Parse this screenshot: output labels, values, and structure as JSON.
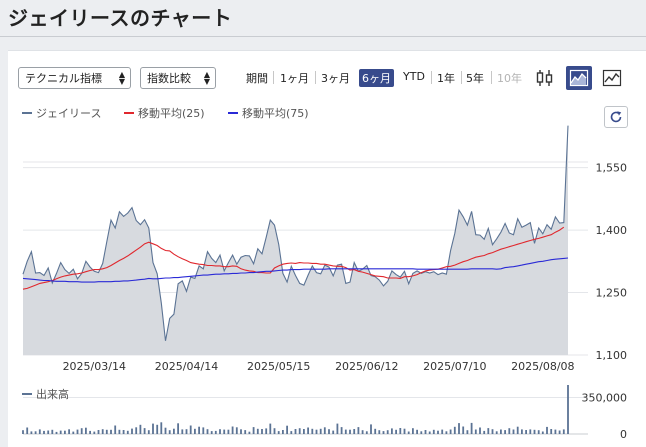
{
  "page": {
    "title": "ジェイリースのチャート"
  },
  "controls": {
    "technical_select": "テクニカル指標",
    "compare_select": "指数比較",
    "ranges": [
      {
        "label": "期間",
        "state": "normal"
      },
      {
        "label": "1ヶ月",
        "state": "normal"
      },
      {
        "label": "3ヶ月",
        "state": "normal"
      },
      {
        "label": "6ヶ月",
        "state": "active"
      },
      {
        "label": "YTD",
        "state": "normal"
      },
      {
        "label": "1年",
        "state": "normal"
      },
      {
        "label": "5年",
        "state": "normal"
      },
      {
        "label": "10年",
        "state": "disabled"
      }
    ],
    "chart_type_buttons": [
      {
        "icon": "candlestick-icon",
        "active": false
      },
      {
        "icon": "area-chart-icon",
        "active": true
      },
      {
        "icon": "line-chart-icon",
        "active": false
      }
    ],
    "refresh_icon": "refresh-icon"
  },
  "colors": {
    "price": "#5b7394",
    "ma25": "#e0282e",
    "ma75": "#2a2ad6",
    "accent": "#384b8c",
    "area": "#d7dadf"
  },
  "chart_data": [
    {
      "type": "area",
      "legend": [
        "ジェイリース",
        "移動平均(25)",
        "移動平均(75)"
      ],
      "ylim": [
        1100,
        1650
      ],
      "yticks": [
        "1,550",
        "1,400",
        "1,250",
        "1,100"
      ],
      "ytick_values": [
        1550,
        1400,
        1250,
        1100
      ],
      "xticks": [
        "2025/03/14",
        "2025/04/14",
        "2025/05/15",
        "2025/06/12",
        "2025/07/10",
        "2025/08/08"
      ],
      "xtick_index": [
        17,
        39,
        61,
        82,
        103,
        124
      ],
      "series": [
        {
          "name": "ジェイリース",
          "values": [
            1294,
            1325,
            1348,
            1297,
            1298,
            1291,
            1309,
            1273,
            1296,
            1322,
            1305,
            1296,
            1306,
            1283,
            1296,
            1325,
            1311,
            1301,
            1298,
            1320,
            1372,
            1424,
            1405,
            1444,
            1433,
            1441,
            1454,
            1423,
            1413,
            1425,
            1405,
            1322,
            1295,
            1225,
            1134,
            1188,
            1198,
            1271,
            1278,
            1253,
            1287,
            1284,
            1314,
            1307,
            1348,
            1332,
            1322,
            1340,
            1302,
            1322,
            1340,
            1318,
            1335,
            1339,
            1338,
            1319,
            1355,
            1343,
            1383,
            1424,
            1412,
            1366,
            1296,
            1275,
            1313,
            1291,
            1272,
            1268,
            1292,
            1314,
            1298,
            1295,
            1316,
            1311,
            1290,
            1316,
            1318,
            1272,
            1275,
            1322,
            1301,
            1306,
            1315,
            1291,
            1288,
            1280,
            1266,
            1277,
            1302,
            1293,
            1287,
            1301,
            1271,
            1296,
            1302,
            1296,
            1300,
            1297,
            1300,
            1293,
            1297,
            1294,
            1351,
            1392,
            1448,
            1432,
            1412,
            1445,
            1389,
            1388,
            1378,
            1404,
            1365,
            1379,
            1395,
            1416,
            1393,
            1389,
            1427,
            1407,
            1412,
            1418,
            1368,
            1405,
            1391,
            1413,
            1402,
            1432,
            1417,
            1418,
            1651
          ]
        },
        {
          "name": "移動平均(25)",
          "values": [
            1258,
            1260,
            1264,
            1268,
            1272,
            1274,
            1276,
            1279,
            1283,
            1287,
            1290,
            1292,
            1294,
            1295,
            1297,
            1300,
            1303,
            1305,
            1305,
            1307,
            1310,
            1315,
            1321,
            1327,
            1332,
            1338,
            1345,
            1352,
            1359,
            1367,
            1371,
            1367,
            1363,
            1356,
            1351,
            1350,
            1342,
            1336,
            1331,
            1327,
            1322,
            1320,
            1318,
            1317,
            1315,
            1315,
            1314,
            1314,
            1312,
            1312,
            1314,
            1313,
            1307,
            1304,
            1302,
            1301,
            1298,
            1298,
            1297,
            1297,
            1309,
            1314,
            1318,
            1320,
            1321,
            1320,
            1322,
            1321,
            1321,
            1320,
            1320,
            1318,
            1318,
            1316,
            1314,
            1313,
            1313,
            1310,
            1304,
            1305,
            1301,
            1299,
            1296,
            1293,
            1290,
            1289,
            1288,
            1285,
            1285,
            1285,
            1284,
            1288,
            1288,
            1290,
            1293,
            1298,
            1302,
            1304,
            1305,
            1306,
            1309,
            1312,
            1313,
            1316,
            1320,
            1324,
            1327,
            1331,
            1335,
            1337,
            1339,
            1343,
            1346,
            1350,
            1354,
            1357,
            1360,
            1363,
            1366,
            1369,
            1372,
            1375,
            1378,
            1380,
            1383,
            1386,
            1389,
            1395,
            1400,
            1407
          ]
        },
        {
          "name": "移動平均(75)",
          "values": [
            1284,
            1283,
            1282,
            1281,
            1280,
            1279,
            1279,
            1278,
            1277,
            1277,
            1277,
            1276,
            1276,
            1276,
            1275,
            1275,
            1275,
            1275,
            1276,
            1276,
            1276,
            1276,
            1277,
            1277,
            1278,
            1278,
            1279,
            1280,
            1281,
            1282,
            1284,
            1283,
            1283,
            1284,
            1285,
            1285,
            1286,
            1286,
            1287,
            1288,
            1289,
            1290,
            1291,
            1292,
            1292,
            1293,
            1294,
            1294,
            1295,
            1295,
            1296,
            1296,
            1297,
            1297,
            1298,
            1298,
            1299,
            1300,
            1301,
            1301,
            1302,
            1303,
            1304,
            1304,
            1305,
            1305,
            1305,
            1306,
            1306,
            1306,
            1306,
            1306,
            1306,
            1307,
            1307,
            1307,
            1307,
            1307,
            1307,
            1307,
            1307,
            1307,
            1307,
            1307,
            1307,
            1307,
            1307,
            1307,
            1307,
            1307,
            1307,
            1307,
            1307,
            1307,
            1306,
            1306,
            1306,
            1306,
            1306,
            1306,
            1306,
            1306,
            1306,
            1306,
            1306,
            1306,
            1306,
            1307,
            1307,
            1307,
            1307,
            1307,
            1307,
            1306,
            1307,
            1310,
            1311,
            1312,
            1314,
            1316,
            1318,
            1320,
            1322,
            1324,
            1325,
            1327,
            1329,
            1330,
            1331,
            1332,
            1333
          ]
        }
      ]
    },
    {
      "type": "bar",
      "legend": [
        "出来高"
      ],
      "ylim": [
        0,
        470000
      ],
      "yticks": [
        "350,000",
        "0"
      ],
      "ytick_values": [
        350000,
        0
      ],
      "series": [
        {
          "name": "出来高",
          "values": [
            36000,
            62000,
            25000,
            26000,
            44000,
            30000,
            34000,
            40000,
            20000,
            33000,
            32000,
            45000,
            23000,
            42000,
            56000,
            60000,
            30000,
            23000,
            38000,
            46000,
            40000,
            40000,
            82000,
            40000,
            38000,
            31000,
            52000,
            64000,
            88000,
            57000,
            36000,
            100000,
            88000,
            112000,
            60000,
            36000,
            51000,
            103000,
            44000,
            46000,
            82000,
            50000,
            70000,
            63000,
            46000,
            28000,
            30000,
            46000,
            42000,
            41000,
            72000,
            64000,
            45000,
            37000,
            22000,
            66000,
            50000,
            48000,
            54000,
            100000,
            56000,
            28000,
            38000,
            80000,
            28000,
            48000,
            56000,
            48000,
            62000,
            50000,
            41000,
            50000,
            64000,
            46000,
            33000,
            100000,
            66000,
            42000,
            41000,
            48000,
            66000,
            36000,
            26000,
            92000,
            50000,
            36000,
            28000,
            36000,
            54000,
            40000,
            58000,
            51000,
            24000,
            56000,
            40000,
            26000,
            38000,
            24000,
            40000,
            32000,
            42000,
            26000,
            43000,
            69000,
            105000,
            72000,
            36000,
            106000,
            43000,
            62000,
            30000,
            57000,
            46000,
            26000,
            43000,
            37000,
            56000,
            43000,
            70000,
            44000,
            38000,
            44000,
            40000,
            36000,
            24000,
            68000,
            48000,
            42000,
            34000,
            44000,
            470000
          ]
        }
      ]
    }
  ]
}
